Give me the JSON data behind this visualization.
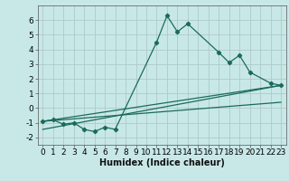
{
  "title": "",
  "xlabel": "Humidex (Indice chaleur)",
  "bg_color": "#c8e8e8",
  "grid_color": "#b0c8c8",
  "line_color": "#1a6b5a",
  "xlim": [
    -0.5,
    23.5
  ],
  "ylim": [
    -2.5,
    7.0
  ],
  "yticks": [
    -2,
    -1,
    0,
    1,
    2,
    3,
    4,
    5,
    6
  ],
  "xticks": [
    0,
    1,
    2,
    3,
    4,
    5,
    6,
    7,
    8,
    9,
    10,
    11,
    12,
    13,
    14,
    15,
    16,
    17,
    18,
    19,
    20,
    21,
    22,
    23
  ],
  "series1_x": [
    0,
    1,
    2,
    3,
    4,
    5,
    6,
    7,
    11,
    12,
    13,
    14,
    17,
    18,
    19,
    20,
    22,
    23
  ],
  "series1_y": [
    -0.9,
    -0.8,
    -1.1,
    -1.0,
    -1.45,
    -1.6,
    -1.3,
    -1.45,
    4.5,
    6.3,
    5.2,
    5.75,
    3.8,
    3.1,
    3.6,
    2.45,
    1.7,
    1.55
  ],
  "series2_x": [
    0,
    23
  ],
  "series2_y": [
    -0.9,
    1.55
  ],
  "series3_x": [
    0,
    23
  ],
  "series3_y": [
    -1.45,
    1.55
  ],
  "series4_x": [
    0,
    23
  ],
  "series4_y": [
    -0.9,
    0.4
  ],
  "xlabel_fontsize": 7,
  "tick_fontsize": 6.5
}
